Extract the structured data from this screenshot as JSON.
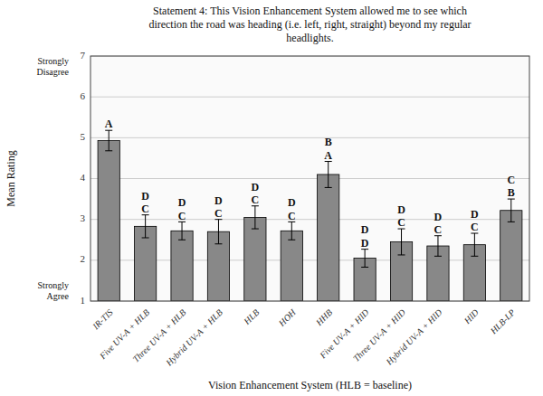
{
  "chart_data": {
    "type": "bar",
    "title": "Statement 4:  This Vision Enhancement System allowed me to see which\ndirection the road was heading (i.e. left, right, straight) beyond my regular\nheadlights.",
    "xlabel": "Vision Enhancement System (HLB = baseline)",
    "ylabel": "Mean Rating",
    "categories": [
      "IR-TIS",
      "Five UV-A + HLB",
      "Three UV-A + HLB",
      "Hybrid UV-A + HLB",
      "HLB",
      "HOH",
      "HHB",
      "Five UV-A + HID",
      "Three UV-A + HID",
      "Hybrid UV-A + HID",
      "HID",
      "HLB-LP"
    ],
    "values": [
      4.93,
      2.83,
      2.72,
      2.7,
      3.05,
      2.72,
      4.1,
      2.05,
      2.45,
      2.35,
      2.38,
      3.22
    ],
    "errors": [
      0.25,
      0.28,
      0.22,
      0.3,
      0.28,
      0.22,
      0.32,
      0.22,
      0.32,
      0.25,
      0.28,
      0.28
    ],
    "color": "#888888",
    "letters": [
      [
        "A"
      ],
      [
        "D",
        "C"
      ],
      [
        "D",
        "C"
      ],
      [
        "D",
        "C"
      ],
      [
        "D",
        "C"
      ],
      [
        "D",
        "C"
      ],
      [
        "B",
        "A"
      ],
      [
        "D",
        "D"
      ],
      [
        "D",
        "C"
      ],
      [
        "D",
        "C"
      ],
      [
        "D",
        "C"
      ],
      [
        "C",
        "B"
      ]
    ],
    "annotations": [
      {
        "text": "Strongly\nDisagree",
        "y": 7
      },
      {
        "text": "Strongly\nAgree",
        "y": 1
      }
    ],
    "ylim": [
      1,
      7
    ],
    "yticks": [
      1,
      2,
      3,
      4,
      5,
      6,
      7
    ],
    "grid": true
  }
}
